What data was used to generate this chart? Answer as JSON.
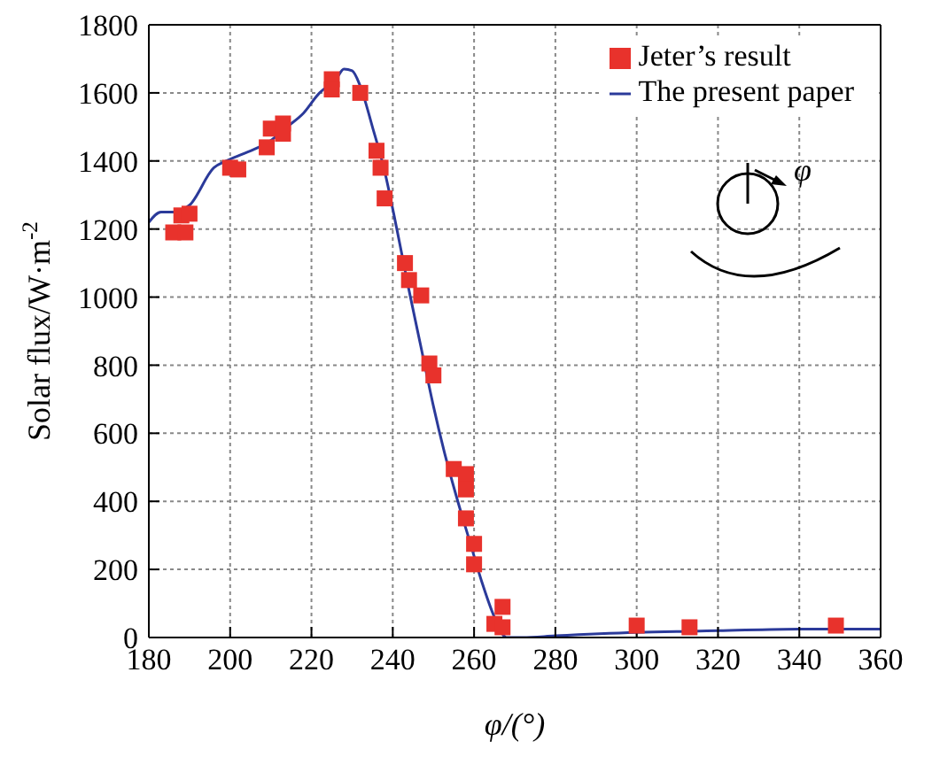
{
  "chart_data": {
    "type": "scatter",
    "xlabel": "φ/(°)",
    "ylabel": "Solar flux/W·m$^{-2}$",
    "xlim": [
      180,
      360
    ],
    "xticks": [
      180,
      200,
      220,
      240,
      260,
      280,
      300,
      320,
      340,
      360
    ],
    "ylim": [
      0,
      1800
    ],
    "yticks": [
      0,
      200,
      400,
      600,
      800,
      1000,
      1200,
      1400,
      1600,
      1800
    ],
    "grid": true,
    "legend": "top right",
    "annotations": [
      "φ"
    ],
    "series": [
      {
        "name": "Jeter’s result",
        "marker": "square",
        "color": "#e8322c",
        "x": [
          186,
          189,
          188,
          190,
          200,
          202,
          209,
          210,
          213,
          213,
          225,
          225,
          232,
          236,
          237,
          238,
          243,
          244,
          247,
          249,
          250,
          255,
          258,
          258,
          258,
          260,
          260,
          265,
          267,
          267,
          300,
          313,
          349
        ],
        "values": [
          1190,
          1190,
          1240,
          1245,
          1380,
          1375,
          1440,
          1495,
          1510,
          1480,
          1640,
          1610,
          1600,
          1430,
          1380,
          1290,
          1100,
          1050,
          1005,
          805,
          770,
          495,
          480,
          435,
          350,
          275,
          215,
          40,
          90,
          30,
          35,
          30,
          35
        ]
      },
      {
        "name": "The present paper",
        "type": "line",
        "marker": "none",
        "color": "#2b3a9a",
        "x": [
          180,
          183,
          186,
          190,
          196,
          199,
          203,
          207,
          210,
          214,
          218,
          222,
          224,
          226,
          228,
          230,
          232,
          235,
          238,
          241,
          244,
          247,
          250,
          253,
          256,
          259,
          262,
          265,
          268,
          272,
          280,
          300,
          320,
          340,
          355,
          360
        ],
        "values": [
          1220,
          1250,
          1250,
          1270,
          1380,
          1400,
          1420,
          1440,
          1460,
          1500,
          1540,
          1600,
          1620,
          1640,
          1670,
          1665,
          1620,
          1500,
          1370,
          1200,
          1020,
          850,
          680,
          530,
          400,
          280,
          160,
          60,
          0,
          0,
          5,
          15,
          20,
          25,
          25,
          25
        ]
      }
    ]
  }
}
